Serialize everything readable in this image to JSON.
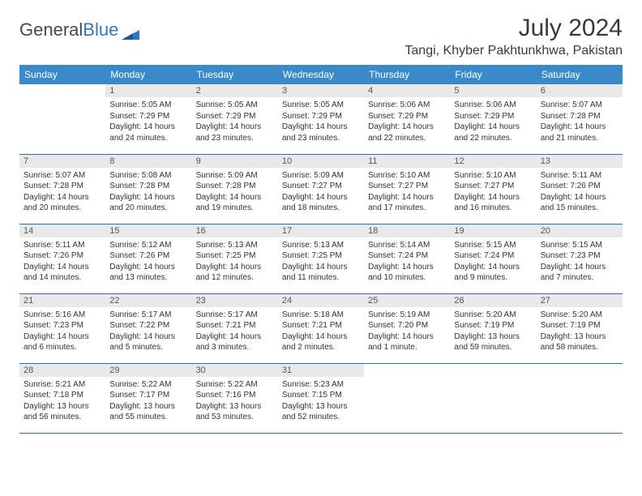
{
  "logo": {
    "text1": "General",
    "text2": "Blue"
  },
  "title": "July 2024",
  "location": "Tangi, Khyber Pakhtunkhwa, Pakistan",
  "colors": {
    "header_bg": "#3a8ac9",
    "header_fg": "#ffffff",
    "daynum_bg": "#e9e9e9",
    "cell_border": "#2f6fa8",
    "logo_blue": "#2f78c4",
    "text": "#333333"
  },
  "day_headers": [
    "Sunday",
    "Monday",
    "Tuesday",
    "Wednesday",
    "Thursday",
    "Friday",
    "Saturday"
  ],
  "weeks": [
    [
      {
        "num": "",
        "lines": []
      },
      {
        "num": "1",
        "lines": [
          "Sunrise: 5:05 AM",
          "Sunset: 7:29 PM",
          "Daylight: 14 hours",
          "and 24 minutes."
        ]
      },
      {
        "num": "2",
        "lines": [
          "Sunrise: 5:05 AM",
          "Sunset: 7:29 PM",
          "Daylight: 14 hours",
          "and 23 minutes."
        ]
      },
      {
        "num": "3",
        "lines": [
          "Sunrise: 5:05 AM",
          "Sunset: 7:29 PM",
          "Daylight: 14 hours",
          "and 23 minutes."
        ]
      },
      {
        "num": "4",
        "lines": [
          "Sunrise: 5:06 AM",
          "Sunset: 7:29 PM",
          "Daylight: 14 hours",
          "and 22 minutes."
        ]
      },
      {
        "num": "5",
        "lines": [
          "Sunrise: 5:06 AM",
          "Sunset: 7:29 PM",
          "Daylight: 14 hours",
          "and 22 minutes."
        ]
      },
      {
        "num": "6",
        "lines": [
          "Sunrise: 5:07 AM",
          "Sunset: 7:28 PM",
          "Daylight: 14 hours",
          "and 21 minutes."
        ]
      }
    ],
    [
      {
        "num": "7",
        "lines": [
          "Sunrise: 5:07 AM",
          "Sunset: 7:28 PM",
          "Daylight: 14 hours",
          "and 20 minutes."
        ]
      },
      {
        "num": "8",
        "lines": [
          "Sunrise: 5:08 AM",
          "Sunset: 7:28 PM",
          "Daylight: 14 hours",
          "and 20 minutes."
        ]
      },
      {
        "num": "9",
        "lines": [
          "Sunrise: 5:09 AM",
          "Sunset: 7:28 PM",
          "Daylight: 14 hours",
          "and 19 minutes."
        ]
      },
      {
        "num": "10",
        "lines": [
          "Sunrise: 5:09 AM",
          "Sunset: 7:27 PM",
          "Daylight: 14 hours",
          "and 18 minutes."
        ]
      },
      {
        "num": "11",
        "lines": [
          "Sunrise: 5:10 AM",
          "Sunset: 7:27 PM",
          "Daylight: 14 hours",
          "and 17 minutes."
        ]
      },
      {
        "num": "12",
        "lines": [
          "Sunrise: 5:10 AM",
          "Sunset: 7:27 PM",
          "Daylight: 14 hours",
          "and 16 minutes."
        ]
      },
      {
        "num": "13",
        "lines": [
          "Sunrise: 5:11 AM",
          "Sunset: 7:26 PM",
          "Daylight: 14 hours",
          "and 15 minutes."
        ]
      }
    ],
    [
      {
        "num": "14",
        "lines": [
          "Sunrise: 5:11 AM",
          "Sunset: 7:26 PM",
          "Daylight: 14 hours",
          "and 14 minutes."
        ]
      },
      {
        "num": "15",
        "lines": [
          "Sunrise: 5:12 AM",
          "Sunset: 7:26 PM",
          "Daylight: 14 hours",
          "and 13 minutes."
        ]
      },
      {
        "num": "16",
        "lines": [
          "Sunrise: 5:13 AM",
          "Sunset: 7:25 PM",
          "Daylight: 14 hours",
          "and 12 minutes."
        ]
      },
      {
        "num": "17",
        "lines": [
          "Sunrise: 5:13 AM",
          "Sunset: 7:25 PM",
          "Daylight: 14 hours",
          "and 11 minutes."
        ]
      },
      {
        "num": "18",
        "lines": [
          "Sunrise: 5:14 AM",
          "Sunset: 7:24 PM",
          "Daylight: 14 hours",
          "and 10 minutes."
        ]
      },
      {
        "num": "19",
        "lines": [
          "Sunrise: 5:15 AM",
          "Sunset: 7:24 PM",
          "Daylight: 14 hours",
          "and 9 minutes."
        ]
      },
      {
        "num": "20",
        "lines": [
          "Sunrise: 5:15 AM",
          "Sunset: 7:23 PM",
          "Daylight: 14 hours",
          "and 7 minutes."
        ]
      }
    ],
    [
      {
        "num": "21",
        "lines": [
          "Sunrise: 5:16 AM",
          "Sunset: 7:23 PM",
          "Daylight: 14 hours",
          "and 6 minutes."
        ]
      },
      {
        "num": "22",
        "lines": [
          "Sunrise: 5:17 AM",
          "Sunset: 7:22 PM",
          "Daylight: 14 hours",
          "and 5 minutes."
        ]
      },
      {
        "num": "23",
        "lines": [
          "Sunrise: 5:17 AM",
          "Sunset: 7:21 PM",
          "Daylight: 14 hours",
          "and 3 minutes."
        ]
      },
      {
        "num": "24",
        "lines": [
          "Sunrise: 5:18 AM",
          "Sunset: 7:21 PM",
          "Daylight: 14 hours",
          "and 2 minutes."
        ]
      },
      {
        "num": "25",
        "lines": [
          "Sunrise: 5:19 AM",
          "Sunset: 7:20 PM",
          "Daylight: 14 hours",
          "and 1 minute."
        ]
      },
      {
        "num": "26",
        "lines": [
          "Sunrise: 5:20 AM",
          "Sunset: 7:19 PM",
          "Daylight: 13 hours",
          "and 59 minutes."
        ]
      },
      {
        "num": "27",
        "lines": [
          "Sunrise: 5:20 AM",
          "Sunset: 7:19 PM",
          "Daylight: 13 hours",
          "and 58 minutes."
        ]
      }
    ],
    [
      {
        "num": "28",
        "lines": [
          "Sunrise: 5:21 AM",
          "Sunset: 7:18 PM",
          "Daylight: 13 hours",
          "and 56 minutes."
        ]
      },
      {
        "num": "29",
        "lines": [
          "Sunrise: 5:22 AM",
          "Sunset: 7:17 PM",
          "Daylight: 13 hours",
          "and 55 minutes."
        ]
      },
      {
        "num": "30",
        "lines": [
          "Sunrise: 5:22 AM",
          "Sunset: 7:16 PM",
          "Daylight: 13 hours",
          "and 53 minutes."
        ]
      },
      {
        "num": "31",
        "lines": [
          "Sunrise: 5:23 AM",
          "Sunset: 7:15 PM",
          "Daylight: 13 hours",
          "and 52 minutes."
        ]
      },
      {
        "num": "",
        "lines": []
      },
      {
        "num": "",
        "lines": []
      },
      {
        "num": "",
        "lines": []
      }
    ]
  ]
}
